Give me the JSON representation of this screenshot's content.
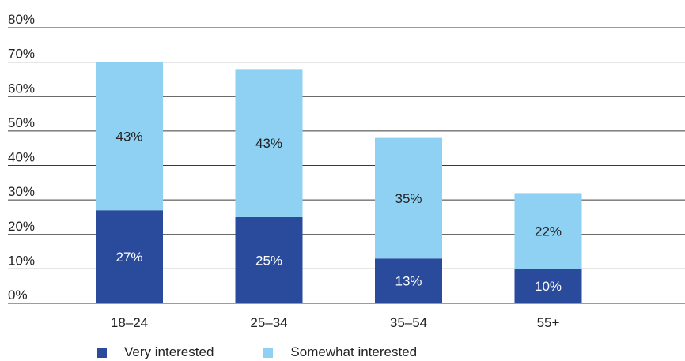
{
  "chart_data": {
    "type": "bar",
    "stacked": true,
    "categories": [
      "18–24",
      "25–34",
      "35–54",
      "55+"
    ],
    "series": [
      {
        "name": "Very interested",
        "values": [
          27,
          25,
          13,
          10
        ],
        "labels": [
          "27%",
          "25%",
          "13%",
          "10%"
        ],
        "color": "#2a4a9c",
        "label_color": "#ffffff"
      },
      {
        "name": "Somewhat interested",
        "values": [
          43,
          43,
          35,
          22
        ],
        "labels": [
          "43%",
          "43%",
          "35%",
          "22%"
        ],
        "color": "#8fd1f3",
        "label_color": "#222222"
      }
    ],
    "y_ticks": [
      "0%",
      "10%",
      "20%",
      "30%",
      "40%",
      "50%",
      "60%",
      "70%",
      "80%"
    ],
    "ylim": [
      0,
      80
    ],
    "grid": true,
    "legend_position": "bottom-left"
  }
}
